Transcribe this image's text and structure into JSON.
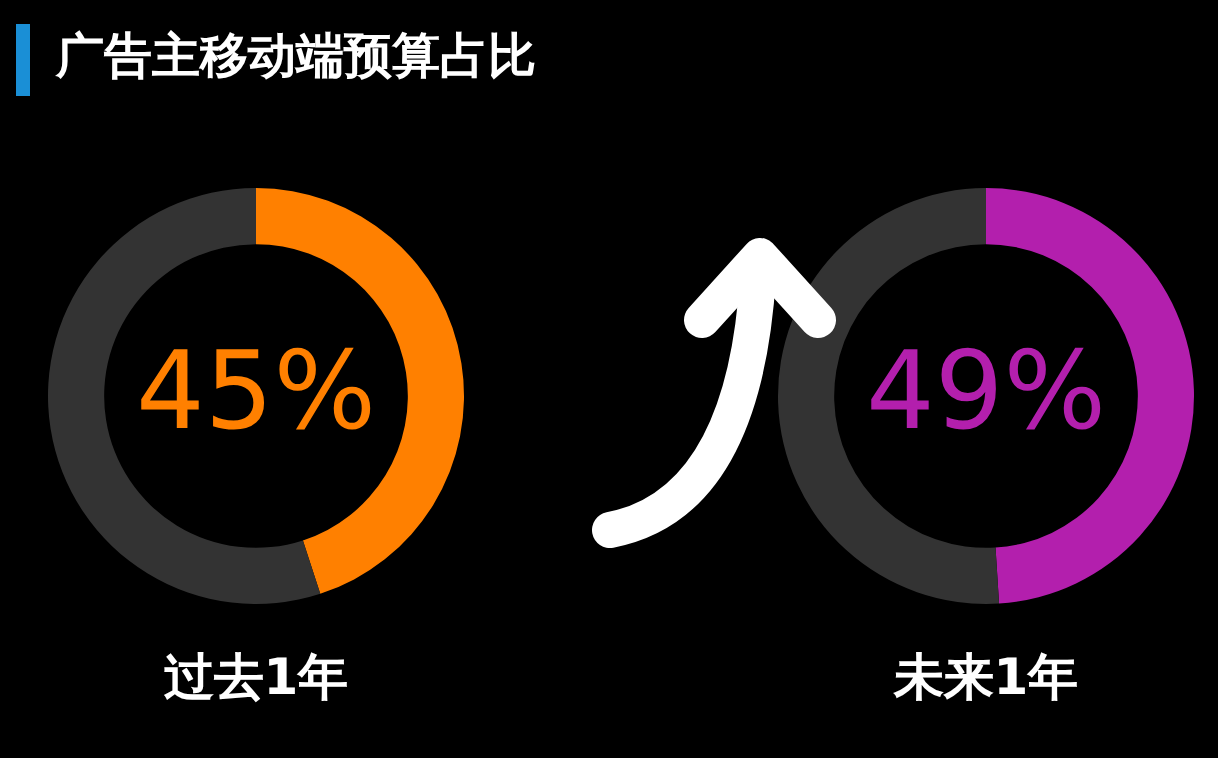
{
  "chart_data": [
    {
      "type": "donut",
      "title": "广告主移动端预算占比",
      "categories": [
        null,
        null
      ],
      "values": [
        45,
        55
      ],
      "colors": [
        "#ff8000",
        "#333333"
      ],
      "value_labels": [
        "45%",
        null
      ],
      "xlabel": "过去1年"
    },
    {
      "type": "donut",
      "categories": [
        null,
        null
      ],
      "values": [
        49,
        51
      ],
      "colors": [
        "#b31fad",
        "#333333"
      ],
      "value_labels": [
        "49%",
        null
      ],
      "xlabel": "未来1年"
    }
  ]
}
